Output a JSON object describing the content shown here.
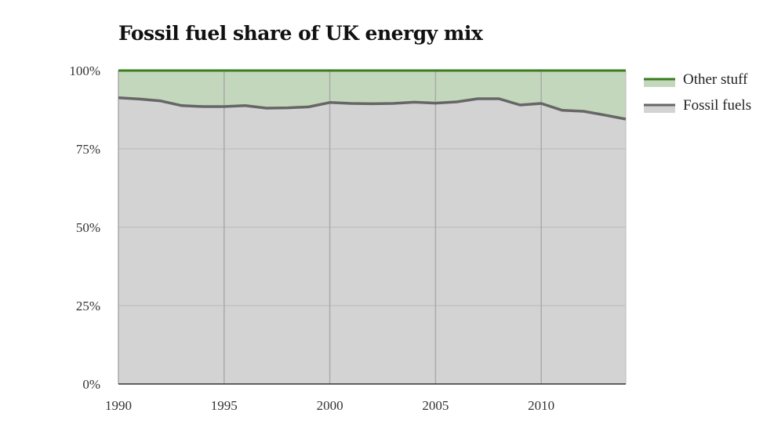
{
  "chart_data": {
    "type": "area",
    "title": "Fossil fuel share of UK energy mix",
    "xlabel": "",
    "ylabel": "",
    "x": [
      1990,
      1991,
      1992,
      1993,
      1994,
      1995,
      1996,
      1997,
      1998,
      1999,
      2000,
      2001,
      2002,
      2003,
      2004,
      2005,
      2006,
      2007,
      2008,
      2009,
      2010,
      2011,
      2012,
      2013,
      2014
    ],
    "series": [
      {
        "name": "Fossil fuels",
        "color": "#666666",
        "fill": "#d3d3d3",
        "values": [
          91.3,
          90.9,
          90.3,
          88.8,
          88.5,
          88.5,
          88.8,
          88.0,
          88.1,
          88.4,
          89.8,
          89.5,
          89.4,
          89.5,
          89.9,
          89.6,
          90.0,
          91.0,
          91.0,
          89.0,
          89.5,
          87.3,
          87.0,
          85.8,
          84.5
        ]
      },
      {
        "name": "Other stuff",
        "color": "#3a7d1e",
        "fill": "#c3d7bc",
        "values_top": 100
      }
    ],
    "xlim": [
      1990,
      2014
    ],
    "ylim": [
      0,
      100
    ],
    "xticks": [
      "1990",
      "1995",
      "2000",
      "2005",
      "2010"
    ],
    "yticks": [
      "0%",
      "25%",
      "50%",
      "75%",
      "100%"
    ],
    "grid": true,
    "legend": "top-right"
  }
}
